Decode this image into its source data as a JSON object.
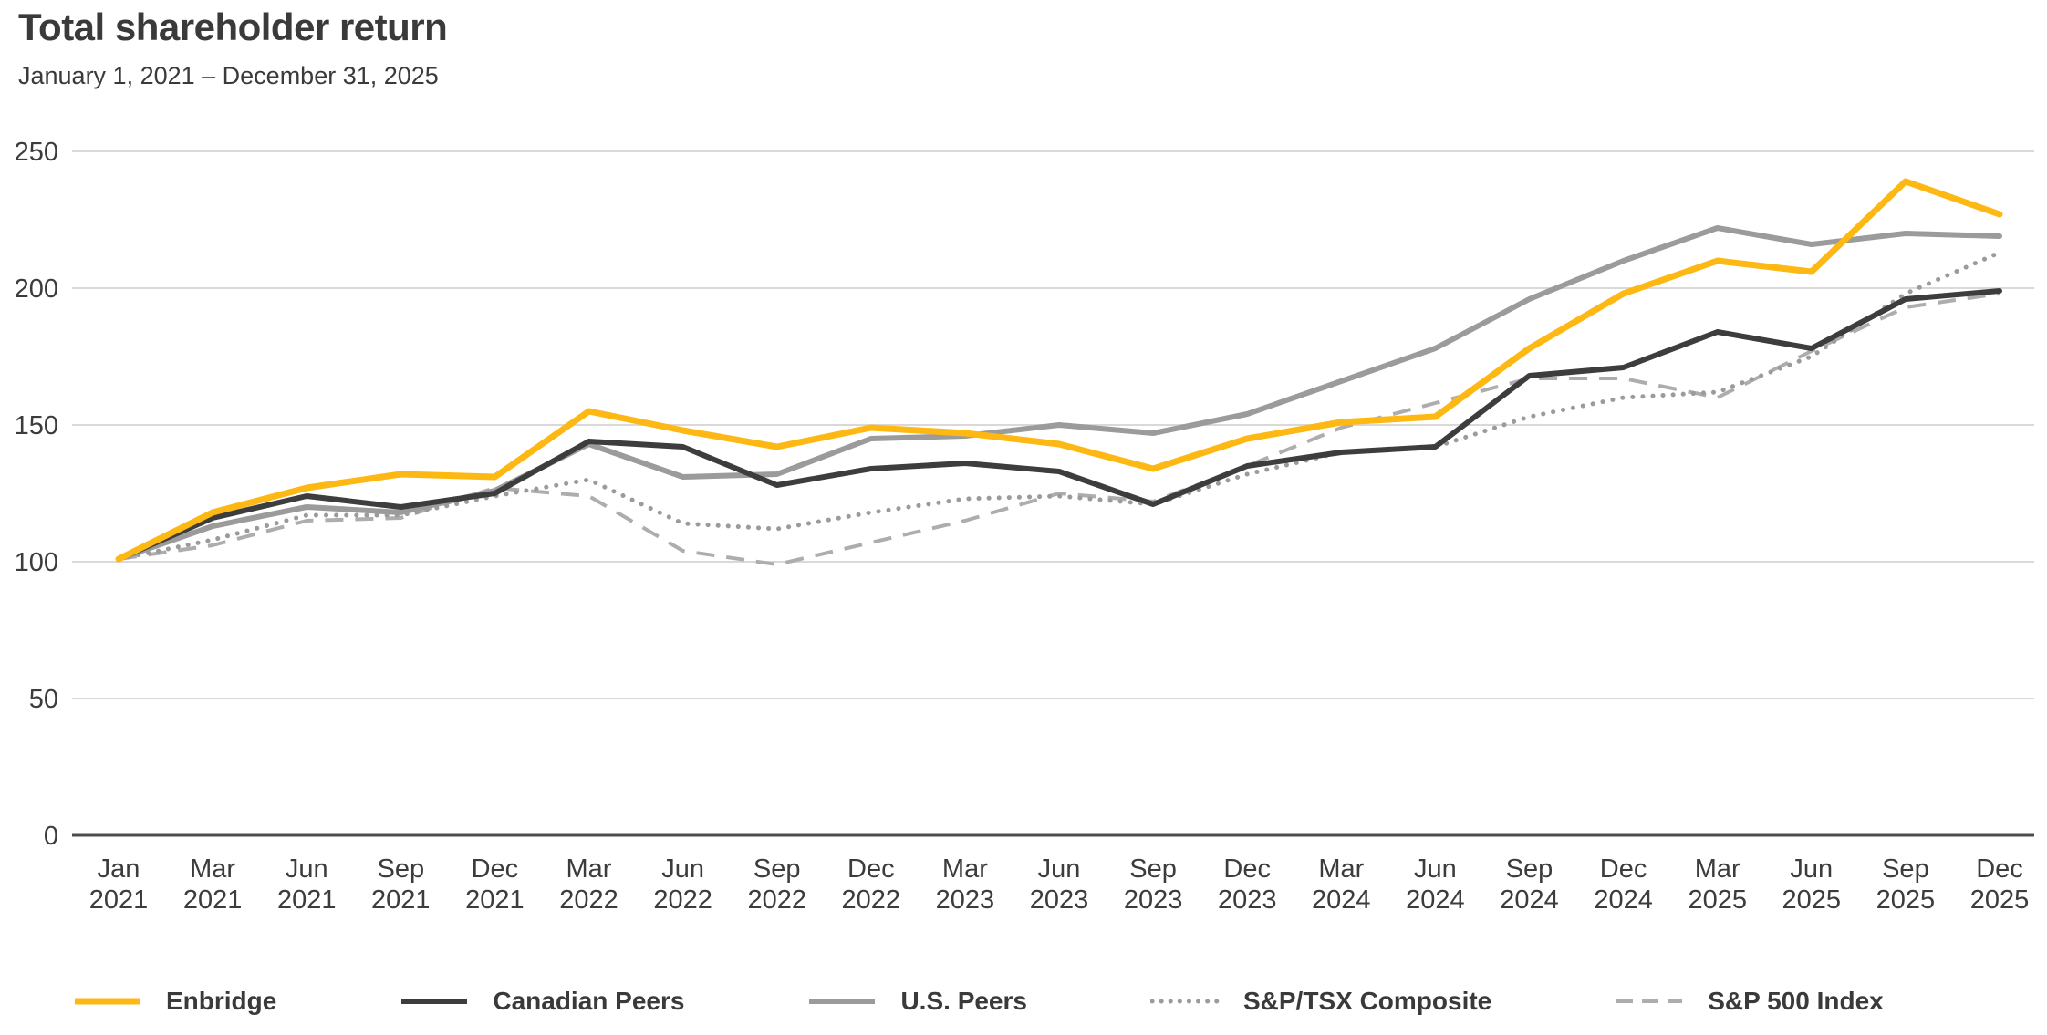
{
  "chart_data": {
    "type": "line",
    "title": "Total shareholder return",
    "subtitle": "January 1, 2021  – December 31, 2025",
    "categories": [
      "Jan 2021",
      "Mar 2021",
      "Jun 2021",
      "Sep 2021",
      "Dec 2021",
      "Mar 2022",
      "Jun 2022",
      "Sep 2022",
      "Dec 2022",
      "Mar 2023",
      "Jun 2023",
      "Sep 2023",
      "Dec 2023",
      "Mar 2024",
      "Jun 2024",
      "Sep 2024",
      "Dec 2024",
      "Mar 2025",
      "Jun 2025",
      "Sep 2025",
      "Dec 2025"
    ],
    "ylim": [
      0,
      250
    ],
    "yticks": [
      0,
      50,
      100,
      150,
      200,
      250
    ],
    "grid": "horizontal",
    "legend_position": "bottom",
    "axis_color": "#4d4d4d",
    "gridline_color": "#d9d9d9",
    "series": [
      {
        "name": "Enbridge",
        "color": "#FDB813",
        "style": "solid",
        "width": 7,
        "values": [
          101,
          118,
          127,
          132,
          131,
          155,
          148,
          142,
          149,
          147,
          143,
          134,
          145,
          151,
          153,
          178,
          198,
          210,
          206,
          239,
          227
        ]
      },
      {
        "name": "Canadian Peers",
        "color": "#3D3D3D",
        "style": "solid",
        "width": 6,
        "values": [
          101,
          116,
          124,
          120,
          125,
          144,
          142,
          128,
          134,
          136,
          133,
          121,
          135,
          140,
          142,
          168,
          171,
          184,
          178,
          196,
          199
        ]
      },
      {
        "name": "U.S. Peers",
        "color": "#9B9B9B",
        "style": "solid",
        "width": 6,
        "values": [
          101,
          113,
          120,
          118,
          126,
          143,
          131,
          132,
          145,
          146,
          150,
          147,
          154,
          166,
          178,
          196,
          210,
          222,
          216,
          220,
          219
        ]
      },
      {
        "name": "S&P/TSX Composite",
        "color": "#9B9B9B",
        "style": "dotted",
        "width": 5,
        "values": [
          101,
          108,
          117,
          117,
          124,
          130,
          114,
          112,
          118,
          123,
          124,
          121,
          132,
          140,
          142,
          153,
          160,
          162,
          175,
          198,
          213
        ]
      },
      {
        "name": "S&P 500 Index",
        "color": "#ADADAD",
        "style": "dashed",
        "width": 4,
        "values": [
          101,
          106,
          115,
          116,
          127,
          124,
          104,
          99,
          107,
          115,
          125,
          122,
          135,
          149,
          158,
          167,
          167,
          160,
          177,
          193,
          198
        ]
      }
    ]
  }
}
